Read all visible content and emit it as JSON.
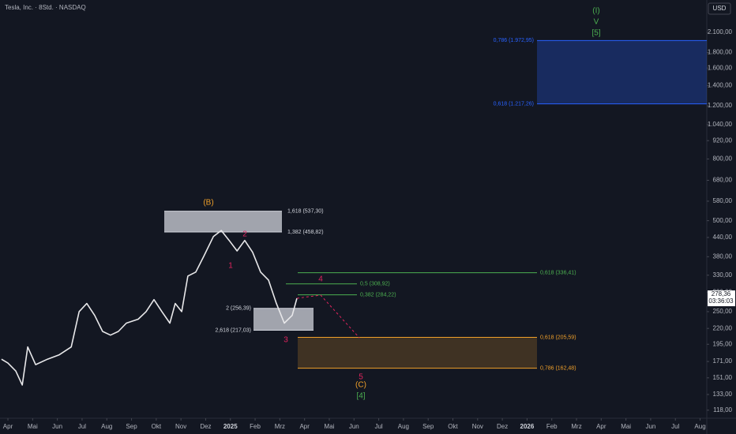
{
  "chart_data": {
    "type": "line",
    "title": "Tesla, Inc. · 8Std. · NASDAQ",
    "currency": "USD",
    "log_scale": true,
    "color": "#e8e8ea",
    "x": [
      -0.26,
      0,
      0.32,
      0.58,
      0.8,
      1.12,
      1.6,
      2.08,
      2.56,
      2.88,
      3.19,
      3.51,
      3.83,
      4.15,
      4.47,
      4.79,
      5.27,
      5.59,
      5.91,
      6.23,
      6.55,
      6.77,
      7.03,
      7.28,
      7.6,
      7.92,
      8.31,
      8.63,
      8.95,
      9.27,
      9.58,
      9.9,
      10.22,
      10.54,
      10.86,
      11.18,
      11.5,
      11.69
    ],
    "values": [
      174,
      169,
      159,
      143,
      191,
      167,
      174,
      180,
      191,
      250,
      266,
      243,
      215,
      209,
      215,
      229,
      236,
      250,
      274,
      250,
      229,
      266,
      250,
      328,
      338,
      381,
      443,
      464,
      430,
      397,
      430,
      393,
      338,
      318,
      266,
      229,
      243,
      277
    ],
    "xlim": [
      -0.32,
      28.27
    ],
    "ylim": [
      111,
      2686
    ],
    "xticks": [
      {
        "value": 0,
        "label": "Apr"
      },
      {
        "value": 1,
        "label": "Mai"
      },
      {
        "value": 2,
        "label": "Jun"
      },
      {
        "value": 3,
        "label": "Jul"
      },
      {
        "value": 4,
        "label": "Aug"
      },
      {
        "value": 5,
        "label": "Sep"
      },
      {
        "value": 6,
        "label": "Okt"
      },
      {
        "value": 7,
        "label": "Nov"
      },
      {
        "value": 8,
        "label": "Dez"
      },
      {
        "value": 9,
        "label": "2025"
      },
      {
        "value": 10,
        "label": "Feb"
      },
      {
        "value": 11,
        "label": "Mrz"
      },
      {
        "value": 12,
        "label": "Apr"
      },
      {
        "value": 13,
        "label": "Mai"
      },
      {
        "value": 14,
        "label": "Jun"
      },
      {
        "value": 15,
        "label": "Jul"
      },
      {
        "value": 16,
        "label": "Aug"
      },
      {
        "value": 17,
        "label": "Sep"
      },
      {
        "value": 18,
        "label": "Okt"
      },
      {
        "value": 19,
        "label": "Nov"
      },
      {
        "value": 20,
        "label": "Dez"
      },
      {
        "value": 21,
        "label": "2026"
      },
      {
        "value": 22,
        "label": "Feb"
      },
      {
        "value": 23,
        "label": "Mrz"
      },
      {
        "value": 24,
        "label": "Apr"
      },
      {
        "value": 25,
        "label": "Mai"
      },
      {
        "value": 26,
        "label": "Jun"
      },
      {
        "value": 27,
        "label": "Jul"
      },
      {
        "value": 28,
        "label": "Aug"
      }
    ],
    "yticks": [
      {
        "value": 2100,
        "label": "2.100,00"
      },
      {
        "value": 1800,
        "label": "1.800,00"
      },
      {
        "value": 1600,
        "label": "1.600,00"
      },
      {
        "value": 1400,
        "label": "1.400,00"
      },
      {
        "value": 1200,
        "label": "1.200,00"
      },
      {
        "value": 1040,
        "label": "1.040,00"
      },
      {
        "value": 920,
        "label": "920,00"
      },
      {
        "value": 800,
        "label": "800,00"
      },
      {
        "value": 680,
        "label": "680,00"
      },
      {
        "value": 580,
        "label": "580,00"
      },
      {
        "value": 500,
        "label": "500,00"
      },
      {
        "value": 440,
        "label": "440,00"
      },
      {
        "value": 380,
        "label": "380,00"
      },
      {
        "value": 330,
        "label": "330,00"
      },
      {
        "value": 290,
        "label": "290,00"
      },
      {
        "value": 250,
        "label": "250,00"
      },
      {
        "value": 220,
        "label": "220,00"
      },
      {
        "value": 195,
        "label": "195,00"
      },
      {
        "value": 171,
        "label": "171,00"
      },
      {
        "value": 151,
        "label": "151,00"
      },
      {
        "value": 133,
        "label": "133,00"
      },
      {
        "value": 118,
        "label": "118,00"
      }
    ],
    "last_price": {
      "value": 278.36,
      "label": "278,36"
    },
    "countdown": "03:36:03",
    "levels": [
      {
        "value": 537.3,
        "label": "1,618 (537,30)",
        "color": "#d1d4dc"
      },
      {
        "value": 458.82,
        "label": "1,382 (458,82)",
        "color": "#d1d4dc"
      },
      {
        "value": 256.39,
        "label": "2 (256,39)",
        "color": "#d1d4dc"
      },
      {
        "value": 217.03,
        "label": "2,618 (217,03)",
        "color": "#d1d4dc"
      },
      {
        "value": 308.92,
        "label": "0,5 (308,92)",
        "color": "#4caf50"
      },
      {
        "value": 284.22,
        "label": "0,382 (284,22)",
        "color": "#4caf50"
      },
      {
        "value": 336.41,
        "label": "0,618 (336,41)",
        "color": "#4caf50"
      },
      {
        "value": 205.59,
        "label": "0,618 (205,59)",
        "color": "#f0a02a"
      },
      {
        "value": 162.48,
        "label": "0,786 (162,48)",
        "color": "#f0a02a"
      },
      {
        "value": 1972.95,
        "label": "0,786 (1.972,95)",
        "color": "#2962ff"
      },
      {
        "value": 1217.26,
        "label": "0,618 (1.217,26)",
        "color": "#2962ff"
      }
    ],
    "wave_labels": [
      {
        "text": "(B)",
        "color": "#f0a02a"
      },
      {
        "text": "1",
        "color": "#e0245e"
      },
      {
        "text": "2",
        "color": "#e0245e"
      },
      {
        "text": "3",
        "color": "#e0245e"
      },
      {
        "text": "4",
        "color": "#e0245e"
      },
      {
        "text": "5",
        "color": "#e0245e"
      },
      {
        "text": "(C)",
        "color": "#f0a02a"
      },
      {
        "text": "[4]",
        "color": "#4caf50"
      },
      {
        "text": "(I)",
        "color": "#4caf50"
      },
      {
        "text": "V",
        "color": "#4caf50"
      },
      {
        "text": "[5]",
        "color": "#4caf50"
      }
    ]
  }
}
